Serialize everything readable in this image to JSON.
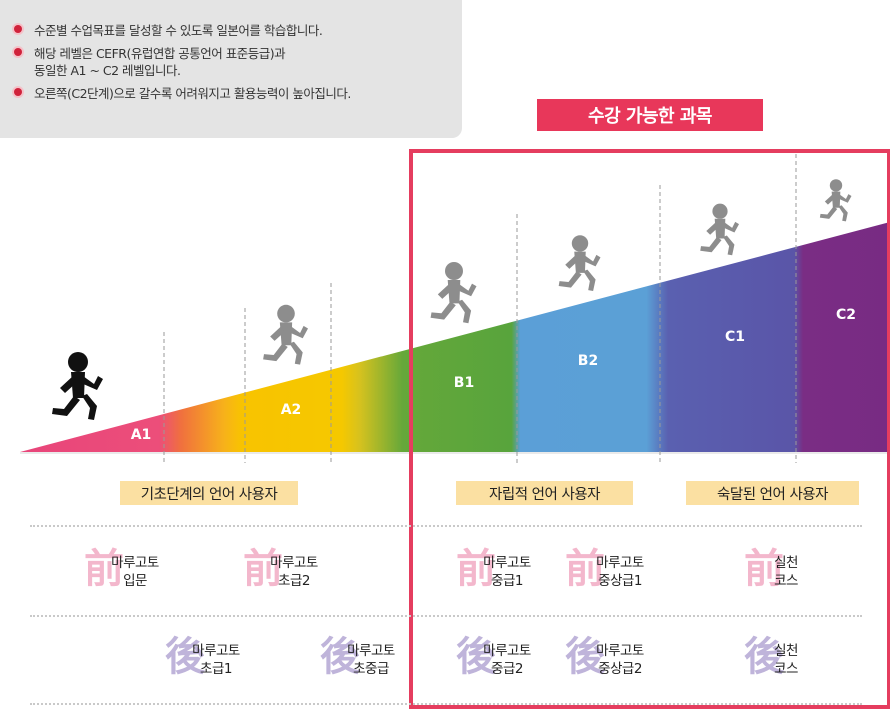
{
  "info": {
    "items": [
      "수준별 수업목표를 달성할 수 있도록 일본어를 학습합니다.",
      "해당 레벨은 CEFR(유럽연합 공통언어 표준등급)과",
      "동일한 A1 ~ C2 레벨입니다.",
      "오른쪽(C2단계)으로 갈수록 어려워지고 활용능력이 높아집니다."
    ]
  },
  "available": {
    "label": "수강 가능한 과목"
  },
  "levels": [
    "A1",
    "A2",
    "B1",
    "B2",
    "C1",
    "C2"
  ],
  "groups": [
    "기초단계의 언어 사용자",
    "자립적 언어 사용자",
    "숙달된 언어 사용자"
  ],
  "glyphs": {
    "front": "前",
    "back": "後"
  },
  "courses": {
    "a1_front": {
      "l1": "마루고토",
      "l2": "입문"
    },
    "a2_front": {
      "l1": "마루고토",
      "l2": "초급2"
    },
    "b1_front": {
      "l1": "마루고토",
      "l2": "중급1"
    },
    "b2_front": {
      "l1": "마루고토",
      "l2": "중상급1"
    },
    "c_front": {
      "l1": "실천",
      "l2": "코스"
    },
    "a1_back": {
      "l1": "마루고토",
      "l2": "초급1"
    },
    "a2_back": {
      "l1": "마루고토",
      "l2": "초중급"
    },
    "b1_back": {
      "l1": "마루고토",
      "l2": "중급2"
    },
    "b2_back": {
      "l1": "마루고토",
      "l2": "중상급2"
    },
    "c_back": {
      "l1": "실천",
      "l2": "코스"
    }
  },
  "colors": {
    "accent": "#e53d5f",
    "a1": "#e8457a",
    "a2": "#f5c400",
    "b1": "#5aa53a",
    "b2": "#5a9fd6",
    "c1": "#5b53a6",
    "c2": "#782b83",
    "group_bg": "#fbe0a2"
  }
}
